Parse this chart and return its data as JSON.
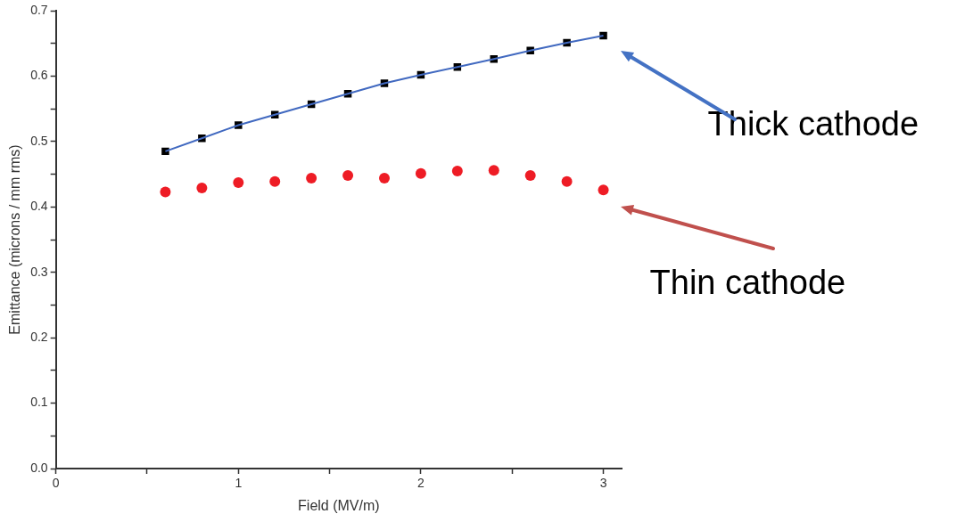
{
  "chart_data": {
    "type": "scatter",
    "xlabel": "Field (MV/m)",
    "ylabel": "Emittance (microns / mm rms)",
    "x": [
      0.6,
      0.8,
      1.0,
      1.2,
      1.4,
      1.6,
      1.8,
      2.0,
      2.2,
      2.4,
      2.6,
      2.8,
      3.0
    ],
    "series": [
      {
        "name": "Thick cathode",
        "color": "#000000",
        "marker": "square",
        "values": [
          0.485,
          0.505,
          0.525,
          0.541,
          0.557,
          0.573,
          0.589,
          0.602,
          0.614,
          0.626,
          0.639,
          0.651,
          0.662
        ]
      },
      {
        "name": "Thin cathode",
        "color": "#ee1c25",
        "marker": "circle",
        "values": [
          0.423,
          0.429,
          0.437,
          0.439,
          0.444,
          0.448,
          0.444,
          0.451,
          0.455,
          0.456,
          0.448,
          0.439,
          0.426
        ]
      },
      {
        "type": "line",
        "color": "#4169c0",
        "marker": "none",
        "values": [
          0.485,
          0.505,
          0.525,
          0.541,
          0.557,
          0.573,
          0.589,
          0.602,
          0.614,
          0.626,
          0.639,
          0.651,
          0.662
        ]
      }
    ],
    "xlim": [
      0,
      3.1
    ],
    "xticks": [
      0,
      {
        "value": 0.5,
        "label": null
      },
      1,
      {
        "value": 1.5,
        "label": null
      },
      2,
      {
        "value": 2.5,
        "label": null
      },
      3
    ],
    "ylim": [
      0,
      0.7
    ],
    "yticks": [
      {
        "value": 0,
        "label": "0.0"
      },
      {
        "value": 0.05,
        "label": null
      },
      0.1,
      {
        "value": 0.15,
        "label": null
      },
      0.2,
      {
        "value": 0.25,
        "label": null
      },
      0.3,
      {
        "value": 0.35,
        "label": null
      },
      0.4,
      {
        "value": 0.45,
        "label": null
      },
      0.5,
      {
        "value": 0.55,
        "label": null
      },
      0.6,
      {
        "value": 0.65,
        "label": null
      },
      0.7
    ],
    "grid": false,
    "legend": false
  }
}
